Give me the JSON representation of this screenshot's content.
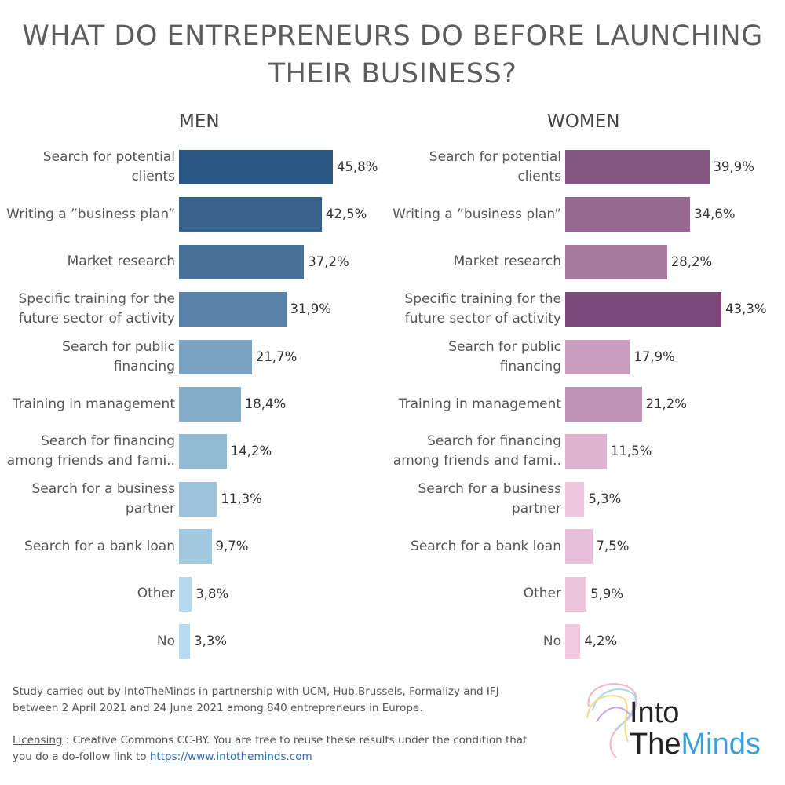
{
  "chart_data": [
    {
      "type": "bar",
      "orientation": "horizontal",
      "title": "MEN",
      "unit": "%",
      "categories": [
        "Search for potential clients",
        "Writing a ”business plan”",
        "Market research",
        "Specific training for the future sector of activity",
        "Search for public financing",
        "Training in management",
        "Search for financing among friends and fami..",
        "Search for a business partner",
        "Search for a bank loan",
        "Other",
        "No"
      ],
      "values": [
        45.8,
        42.5,
        37.2,
        31.9,
        21.7,
        18.4,
        14.2,
        11.3,
        9.7,
        3.8,
        3.3
      ],
      "labels": [
        "45,8%",
        "42,5%",
        "37,2%",
        "31,9%",
        "21,7%",
        "18,4%",
        "14,2%",
        "11,3%",
        "9,7%",
        "3,8%",
        "3,3%"
      ],
      "color_high": "#2a5783",
      "color_low": "#b7dcf0"
    },
    {
      "type": "bar",
      "orientation": "horizontal",
      "title": "WOMEN",
      "unit": "%",
      "categories": [
        "Search for potential clients",
        "Writing a ”business plan”",
        "Market research",
        "Specific training for the future sector of activity",
        "Search for public financing",
        "Training in management",
        "Search for financing among friends and fami..",
        "Search for a business partner",
        "Search for a bank loan",
        "Other",
        "No"
      ],
      "values": [
        39.9,
        34.6,
        28.2,
        43.3,
        17.9,
        21.2,
        11.5,
        5.3,
        7.5,
        5.9,
        4.2
      ],
      "labels": [
        "39,9%",
        "34,6%",
        "28,2%",
        "43,3%",
        "17,9%",
        "21,2%",
        "11,5%",
        "5,3%",
        "7,5%",
        "5,9%",
        "4,2%"
      ],
      "color_high": "#7b4a78",
      "color_low": "#f2cae3"
    }
  ],
  "header": {
    "title_line1": "WHAT DO ENTREPRENEURS DO BEFORE LAUNCHING",
    "title_line2": "THEIR BUSINESS?"
  },
  "footer": {
    "study_line1": "Study carried out by IntoTheMinds in partnership with UCM, Hub.Brussels, Formalizy and IFJ",
    "study_line2": "between 2 April 2021 and 24 June 2021 among 840 entrepreneurs in Europe.",
    "licensing_label": "Licensing",
    "licensing_text1": " : Creative Commons CC-BY. You are free to reuse these results under the condition that",
    "licensing_text2": "you do a do-follow link to ",
    "link": "https://www.intotheminds.com"
  },
  "logo": {
    "line1": "Into",
    "line2a": "The",
    "line2b": "Minds"
  }
}
